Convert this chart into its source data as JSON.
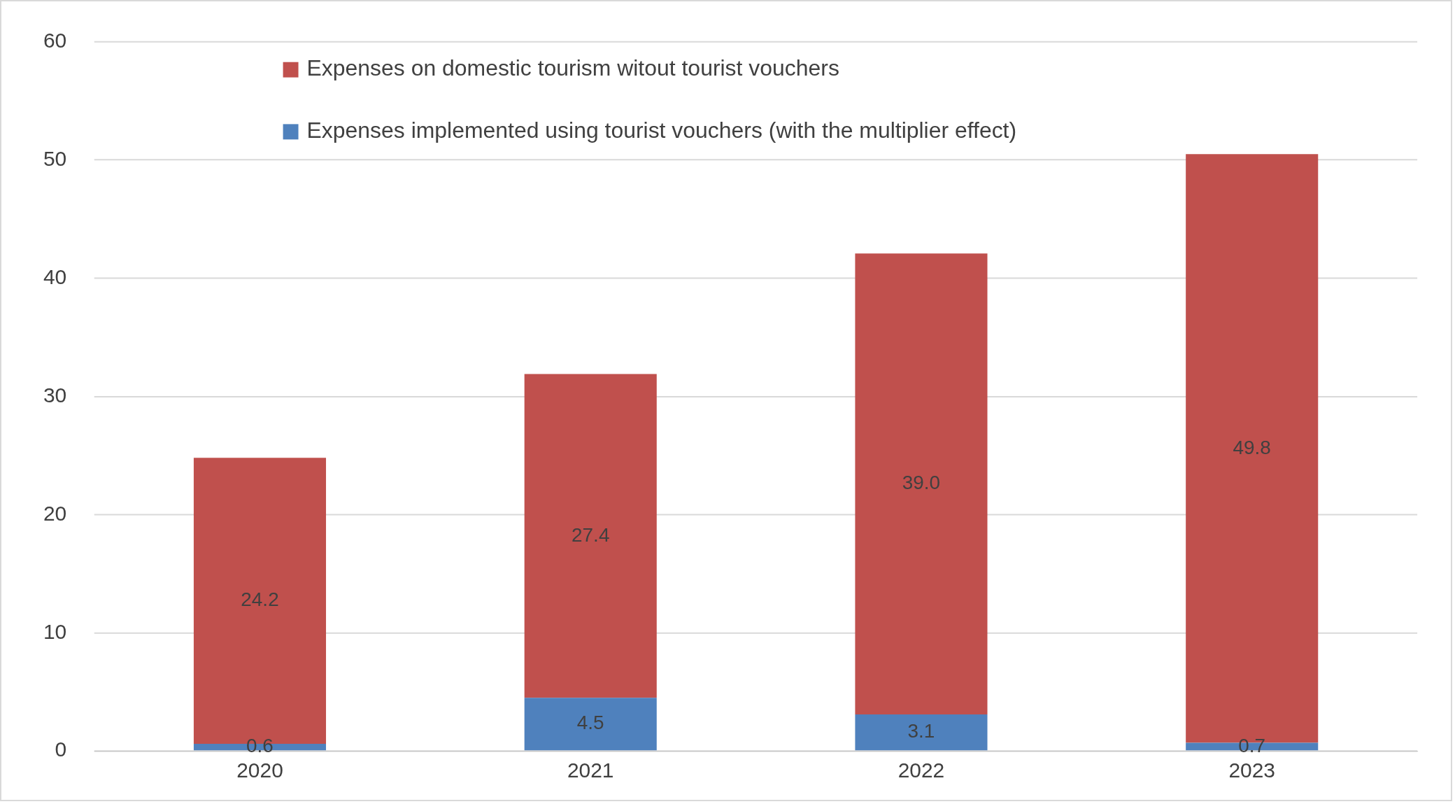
{
  "chart_data": {
    "type": "bar",
    "stacked": true,
    "categories": [
      "2020",
      "2021",
      "2022",
      "2023"
    ],
    "series": [
      {
        "name": "Expenses implemented using tourist vouchers (with the multiplier effect)",
        "color": "#4f81bd",
        "values": [
          0.6,
          4.5,
          3.1,
          0.7
        ],
        "value_labels": [
          "0.6",
          "4.5",
          "3.1",
          "0.7"
        ]
      },
      {
        "name": "Expenses on domestic tourism witout tourist vouchers",
        "color": "#c0504d",
        "values": [
          24.2,
          27.4,
          39.0,
          49.8
        ],
        "value_labels": [
          "24.2",
          "27.4",
          "39.0",
          "49.8"
        ]
      }
    ],
    "ylim": [
      0,
      60
    ],
    "yticks": [
      0,
      10,
      20,
      30,
      40,
      50,
      60
    ],
    "grid": "y",
    "legend": "top left"
  }
}
